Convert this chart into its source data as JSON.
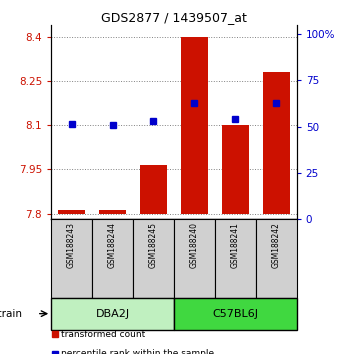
{
  "title": "GDS2877 / 1439507_at",
  "samples": [
    "GSM188243",
    "GSM188244",
    "GSM188245",
    "GSM188240",
    "GSM188241",
    "GSM188242"
  ],
  "red_values": [
    7.812,
    7.812,
    7.965,
    8.4,
    8.1,
    8.28
  ],
  "blue_values": [
    8.105,
    8.1,
    8.115,
    8.175,
    8.12,
    8.175
  ],
  "baseline": 7.8,
  "ylim_left": [
    7.78,
    8.44
  ],
  "ylim_right": [
    0,
    105
  ],
  "yticks_left": [
    7.8,
    7.95,
    8.1,
    8.25,
    8.4
  ],
  "yticks_right": [
    0,
    25,
    50,
    75,
    100
  ],
  "ytick_labels_left": [
    "7.8",
    "7.95",
    "8.1",
    "8.25",
    "8.4"
  ],
  "ytick_labels_right": [
    "0",
    "25",
    "50",
    "75",
    "100%"
  ],
  "groups": [
    {
      "name": "DBA2J",
      "indices": [
        0,
        1,
        2
      ],
      "color": "#c0f0c0"
    },
    {
      "name": "C57BL6J",
      "indices": [
        3,
        4,
        5
      ],
      "color": "#40d840"
    }
  ],
  "bar_color": "#cc1100",
  "dot_color": "#0000cc",
  "grid_color": "#808080",
  "bar_width": 0.65,
  "left_tick_color": "#cc1100",
  "right_tick_color": "#0000cc",
  "legend_red": "transformed count",
  "legend_blue": "percentile rank within the sample"
}
